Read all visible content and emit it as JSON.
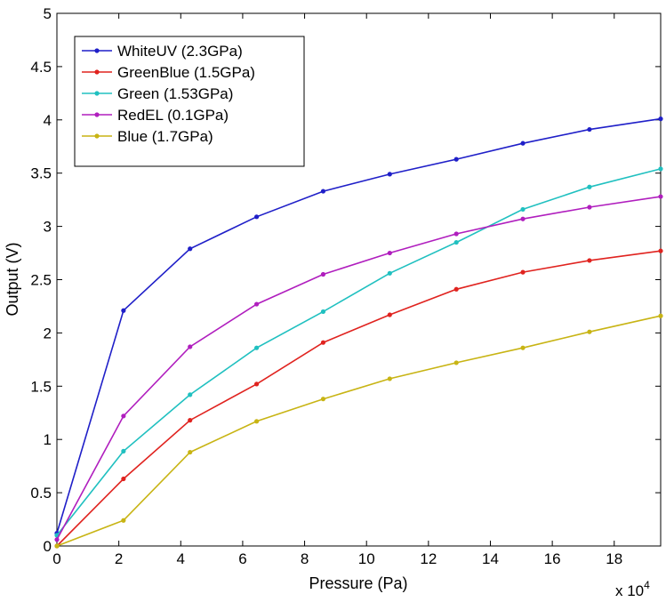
{
  "chart_data": {
    "type": "line",
    "title": "",
    "xlabel": "Pressure (Pa)",
    "ylabel": "Output (V)",
    "x_multiplier": {
      "base": "x 10",
      "exponent": "4"
    },
    "xlim": [
      0,
      19.5
    ],
    "ylim": [
      0,
      5
    ],
    "xticks": [
      0,
      2,
      4,
      6,
      8,
      10,
      12,
      14,
      16,
      18
    ],
    "xtick_labels": [
      "0",
      "2",
      "4",
      "6",
      "8",
      "10",
      "12",
      "14",
      "16",
      "18"
    ],
    "yticks": [
      0,
      0.5,
      1,
      1.5,
      2,
      2.5,
      3,
      3.5,
      4,
      4.5,
      5
    ],
    "ytick_labels": [
      "0",
      "0.5",
      "1",
      "1.5",
      "2",
      "2.5",
      "3",
      "3.5",
      "4",
      "4.5",
      "5"
    ],
    "grid": false,
    "legend_position": "top-left",
    "x": [
      0,
      2.15,
      4.3,
      6.45,
      8.6,
      10.75,
      12.9,
      15.05,
      17.2,
      19.5
    ],
    "series": [
      {
        "name": "WhiteUV (2.3GPa)",
        "color": "#1f1fc8",
        "values": [
          0.12,
          2.21,
          2.79,
          3.09,
          3.33,
          3.49,
          3.63,
          3.78,
          3.91,
          4.01
        ]
      },
      {
        "name": "GreenBlue (1.5GPa)",
        "color": "#e0231f",
        "values": [
          0.0,
          0.63,
          1.18,
          1.52,
          1.91,
          2.17,
          2.41,
          2.57,
          2.68,
          2.77
        ]
      },
      {
        "name": "Green (1.53GPa)",
        "color": "#20c0c0",
        "values": [
          0.1,
          0.89,
          1.42,
          1.86,
          2.2,
          2.56,
          2.85,
          3.16,
          3.37,
          3.54
        ]
      },
      {
        "name": "RedEL (0.1GPa)",
        "color": "#b01ebe",
        "values": [
          0.06,
          1.22,
          1.87,
          2.27,
          2.55,
          2.75,
          2.93,
          3.07,
          3.18,
          3.28
        ]
      },
      {
        "name": "Blue (1.7GPa)",
        "color": "#c8b414",
        "values": [
          0.0,
          0.24,
          0.88,
          1.17,
          1.38,
          1.57,
          1.72,
          1.86,
          2.01,
          2.16
        ]
      }
    ]
  }
}
